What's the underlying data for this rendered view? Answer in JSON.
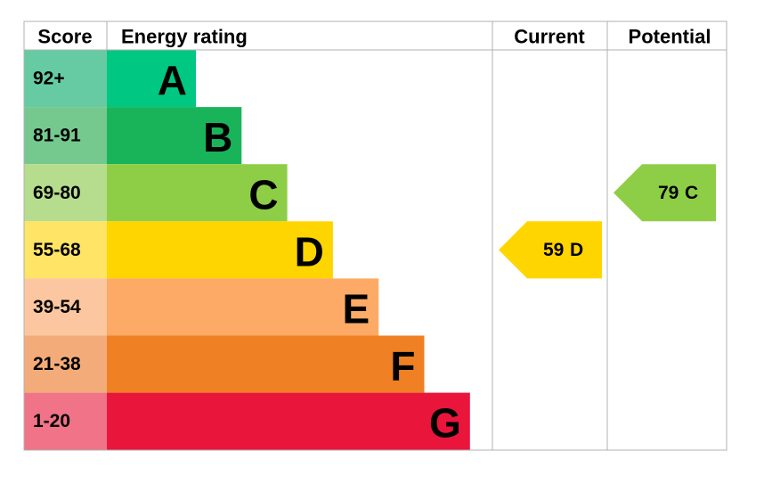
{
  "header": {
    "score": "Score",
    "rating": "Energy rating",
    "current": "Current",
    "potential": "Potential"
  },
  "bands": [
    {
      "score": "92+",
      "letter": "A",
      "color": "#00c781",
      "light": "#66cba3"
    },
    {
      "score": "81-91",
      "letter": "B",
      "color": "#19b459",
      "light": "#75c98f"
    },
    {
      "score": "69-80",
      "letter": "C",
      "color": "#8dce46",
      "light": "#b6dd8e"
    },
    {
      "score": "55-68",
      "letter": "D",
      "color": "#ffd500",
      "light": "#ffe466"
    },
    {
      "score": "39-54",
      "letter": "E",
      "color": "#fcaa65",
      "light": "#fcc7a0"
    },
    {
      "score": "21-38",
      "letter": "F",
      "color": "#ef8023",
      "light": "#f3ac79"
    },
    {
      "score": "1-20",
      "letter": "G",
      "color": "#e9153b",
      "light": "#f07388"
    }
  ],
  "current": {
    "value": 59,
    "letter": "D"
  },
  "potential": {
    "value": 79,
    "letter": "C"
  }
}
